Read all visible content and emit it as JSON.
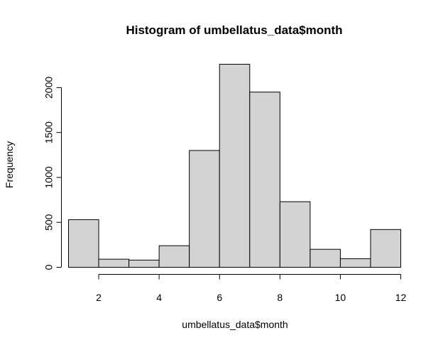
{
  "chart_data": {
    "type": "bar",
    "title": "Histogram of umbellatus_data$month",
    "xlabel": "umbellatus_data$month",
    "ylabel": "Frequency",
    "bins": [
      {
        "start": 1,
        "end": 2,
        "value": 530
      },
      {
        "start": 2,
        "end": 3,
        "value": 90
      },
      {
        "start": 3,
        "end": 4,
        "value": 80
      },
      {
        "start": 4,
        "end": 5,
        "value": 240
      },
      {
        "start": 5,
        "end": 6,
        "value": 1300
      },
      {
        "start": 6,
        "end": 7,
        "value": 2260
      },
      {
        "start": 7,
        "end": 8,
        "value": 1950
      },
      {
        "start": 8,
        "end": 9,
        "value": 730
      },
      {
        "start": 9,
        "end": 10,
        "value": 200
      },
      {
        "start": 10,
        "end": 11,
        "value": 95
      },
      {
        "start": 11,
        "end": 12,
        "value": 420
      }
    ],
    "xlim": [
      1,
      12
    ],
    "ylim": [
      0,
      2260
    ],
    "xticks": [
      2,
      4,
      6,
      8,
      10,
      12
    ],
    "xtick_labels": [
      "2",
      "4",
      "6",
      "8",
      "10",
      "12"
    ],
    "yticks": [
      0,
      500,
      1000,
      1500,
      2000
    ],
    "ytick_labels": [
      "0",
      "500",
      "1000",
      "1500",
      "2000"
    ],
    "bar_color": "#d3d3d3",
    "edge_color": "#000000",
    "grid": false
  }
}
